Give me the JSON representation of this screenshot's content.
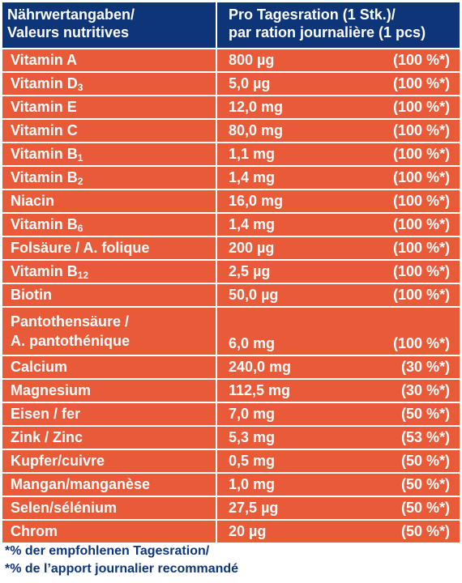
{
  "header": {
    "col1_line1": "Nährwertangaben/",
    "col1_line2": "Valeurs nutritives",
    "col2_line1": "Pro Tagesration (1 Stk.)/",
    "col2_line2": "par ration journalière (1 pcs)"
  },
  "rows": [
    {
      "name": "Vitamin A",
      "sub": "",
      "amount": "800 µg",
      "percent": "(100 %*)"
    },
    {
      "name": "Vitamin D",
      "sub": "3",
      "amount": "5,0 µg",
      "percent": "(100 %*)"
    },
    {
      "name": "Vitamin E",
      "sub": "",
      "amount": "12,0 mg",
      "percent": "(100 %*)"
    },
    {
      "name": "Vitamin C",
      "sub": "",
      "amount": "80,0 mg",
      "percent": "(100 %*)"
    },
    {
      "name": "Vitamin B",
      "sub": "1",
      "amount": "1,1 mg",
      "percent": "(100 %*)"
    },
    {
      "name": "Vitamin B",
      "sub": "2",
      "amount": "1,4 mg",
      "percent": "(100 %*)"
    },
    {
      "name": "Niacin",
      "sub": "",
      "amount": "16,0 mg",
      "percent": "(100 %*)"
    },
    {
      "name": "Vitamin B",
      "sub": "6",
      "amount": "1,4 mg",
      "percent": "(100 %*)"
    },
    {
      "name": "Folsäure / A. folique",
      "sub": "",
      "amount": "200 µg",
      "percent": "(100 %*)"
    },
    {
      "name": "Vitamin B",
      "sub": "12",
      "amount": "2,5 µg",
      "percent": "(100 %*)"
    },
    {
      "name": "Biotin",
      "sub": "",
      "amount": "50,0 µg",
      "percent": "(100 %*)"
    },
    {
      "name": "Pantothensäure /",
      "name2": "A. pantothénique",
      "sub": "",
      "amount": "6,0 mg",
      "percent": "(100 %*)"
    },
    {
      "name": "Calcium",
      "sub": "",
      "amount": "240,0 mg",
      "percent": "(30 %*)"
    },
    {
      "name": "Magnesium",
      "sub": "",
      "amount": "112,5 mg",
      "percent": "(30 %*)"
    },
    {
      "name": "Eisen / fer",
      "sub": "",
      "amount": "7,0 mg",
      "percent": "(50 %*)"
    },
    {
      "name": "Zink / Zinc",
      "sub": "",
      "amount": "5,3 mg",
      "percent": "(53 %*)"
    },
    {
      "name": "Kupfer/cuivre",
      "sub": "",
      "amount": "0,5 mg",
      "percent": "(50 %*)"
    },
    {
      "name": "Mangan/manganèse",
      "sub": "",
      "amount": "1,0 mg",
      "percent": "(50 %*)"
    },
    {
      "name": "Selen/sélénium",
      "sub": "",
      "amount": "27,5 µg",
      "percent": "(50 %*)"
    },
    {
      "name": "Chrom",
      "sub": "",
      "amount": "20 µg",
      "percent": "(50 %*)"
    }
  ],
  "footer": {
    "line1": "*% der empfohlenen Tagesration/",
    "line2": "*% de l’apport journalier recommandé"
  },
  "colors": {
    "header_bg": "#0d3577",
    "row_bg": "#e85a38",
    "footer_text": "#0d3577"
  }
}
